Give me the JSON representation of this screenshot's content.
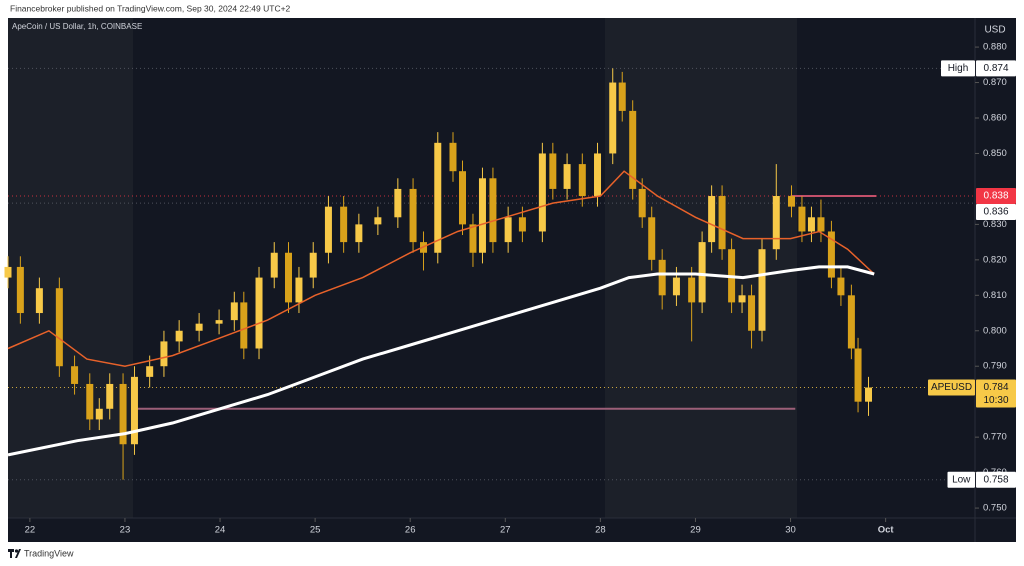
{
  "chart_data": {
    "type": "candlestick",
    "header": "Financebroker published on TradingView.com, Sep 30, 2024 22:49 UTC+2",
    "title": "ApeCoin / US Dollar, 1h, COINBASE",
    "currency": "USD",
    "footer": "TradingView",
    "up_color": "#f7c948",
    "down_color": "#d9a21b",
    "x": [
      21.77,
      21.9,
      22.1,
      22.31,
      22.47,
      22.63,
      22.73,
      22.84,
      22.98,
      23.1,
      23.26,
      23.41,
      23.57,
      23.78,
      23.99,
      24.15,
      24.25,
      24.41,
      24.57,
      24.72,
      24.83,
      24.98,
      25.14,
      25.3,
      25.46,
      25.66,
      25.87,
      26.03,
      26.14,
      26.29,
      26.45,
      26.55,
      26.66,
      26.76,
      26.87,
      27.03,
      27.18,
      27.39,
      27.5,
      27.65,
      27.81,
      27.97,
      28.13,
      28.23,
      28.34,
      28.44,
      28.54,
      28.65,
      28.8,
      28.96,
      29.07,
      29.17,
      29.28,
      29.38,
      29.49,
      29.59,
      29.7,
      29.85,
      30.01,
      30.12,
      30.22,
      30.32,
      30.43,
      30.53,
      30.64,
      30.71,
      30.82
    ],
    "open": [
      0.815,
      0.818,
      0.805,
      0.812,
      0.79,
      0.785,
      0.775,
      0.778,
      0.785,
      0.768,
      0.787,
      0.79,
      0.797,
      0.8,
      0.802,
      0.803,
      0.808,
      0.795,
      0.815,
      0.822,
      0.808,
      0.815,
      0.822,
      0.835,
      0.825,
      0.83,
      0.832,
      0.84,
      0.825,
      0.822,
      0.853,
      0.845,
      0.83,
      0.822,
      0.843,
      0.825,
      0.832,
      0.828,
      0.85,
      0.84,
      0.847,
      0.838,
      0.85,
      0.87,
      0.862,
      0.84,
      0.832,
      0.82,
      0.81,
      0.815,
      0.808,
      0.825,
      0.838,
      0.823,
      0.808,
      0.81,
      0.8,
      0.823,
      0.838,
      0.835,
      0.828,
      0.832,
      0.828,
      0.815,
      0.81,
      0.795,
      0.78
    ],
    "high": [
      0.821,
      0.821,
      0.815,
      0.815,
      0.793,
      0.788,
      0.781,
      0.788,
      0.788,
      0.79,
      0.793,
      0.8,
      0.803,
      0.805,
      0.806,
      0.811,
      0.811,
      0.818,
      0.825,
      0.825,
      0.818,
      0.825,
      0.838,
      0.838,
      0.833,
      0.835,
      0.843,
      0.843,
      0.828,
      0.856,
      0.856,
      0.848,
      0.833,
      0.846,
      0.846,
      0.835,
      0.835,
      0.853,
      0.853,
      0.85,
      0.85,
      0.853,
      0.874,
      0.873,
      0.865,
      0.843,
      0.835,
      0.823,
      0.818,
      0.818,
      0.828,
      0.841,
      0.841,
      0.826,
      0.813,
      0.813,
      0.826,
      0.847,
      0.841,
      0.838,
      0.835,
      0.837,
      0.831,
      0.818,
      0.813,
      0.798,
      0.787
    ],
    "low": [
      0.812,
      0.802,
      0.802,
      0.787,
      0.782,
      0.772,
      0.772,
      0.775,
      0.758,
      0.765,
      0.784,
      0.787,
      0.794,
      0.797,
      0.799,
      0.8,
      0.792,
      0.792,
      0.812,
      0.805,
      0.805,
      0.812,
      0.819,
      0.822,
      0.822,
      0.827,
      0.829,
      0.822,
      0.817,
      0.819,
      0.842,
      0.827,
      0.818,
      0.819,
      0.822,
      0.822,
      0.825,
      0.825,
      0.837,
      0.837,
      0.835,
      0.835,
      0.847,
      0.859,
      0.837,
      0.829,
      0.817,
      0.806,
      0.807,
      0.797,
      0.805,
      0.822,
      0.82,
      0.805,
      0.805,
      0.795,
      0.797,
      0.82,
      0.832,
      0.825,
      0.825,
      0.825,
      0.812,
      0.807,
      0.792,
      0.777,
      0.776
    ],
    "close": [
      0.818,
      0.805,
      0.812,
      0.79,
      0.785,
      0.775,
      0.778,
      0.785,
      0.768,
      0.787,
      0.79,
      0.797,
      0.8,
      0.802,
      0.803,
      0.808,
      0.795,
      0.815,
      0.822,
      0.808,
      0.815,
      0.822,
      0.835,
      0.825,
      0.83,
      0.832,
      0.84,
      0.825,
      0.822,
      0.853,
      0.845,
      0.83,
      0.822,
      0.843,
      0.825,
      0.832,
      0.828,
      0.85,
      0.84,
      0.847,
      0.838,
      0.85,
      0.87,
      0.862,
      0.84,
      0.832,
      0.82,
      0.81,
      0.815,
      0.808,
      0.825,
      0.838,
      0.823,
      0.808,
      0.81,
      0.8,
      0.823,
      0.838,
      0.835,
      0.828,
      0.832,
      0.828,
      0.815,
      0.81,
      0.795,
      0.78,
      0.784
    ],
    "moving_averages": [
      {
        "color": "#e8622a",
        "x": [
          21.77,
          22.2,
          22.6,
          23.0,
          23.5,
          24.0,
          24.5,
          25.0,
          25.5,
          26.0,
          26.5,
          27.0,
          27.5,
          28.0,
          28.25,
          28.6,
          29.0,
          29.5,
          30.0,
          30.3,
          30.6,
          30.88
        ],
        "values": [
          0.795,
          0.8,
          0.792,
          0.79,
          0.793,
          0.798,
          0.803,
          0.81,
          0.815,
          0.822,
          0.828,
          0.832,
          0.836,
          0.838,
          0.845,
          0.838,
          0.832,
          0.826,
          0.826,
          0.828,
          0.823,
          0.816
        ]
      },
      {
        "color": "#ffffff",
        "x": [
          21.77,
          22.5,
          23.0,
          23.5,
          24.0,
          24.5,
          25.0,
          25.5,
          26.0,
          26.5,
          27.0,
          27.5,
          28.0,
          28.3,
          28.6,
          29.0,
          29.5,
          30.0,
          30.3,
          30.6,
          30.88
        ],
        "values": [
          0.765,
          0.769,
          0.771,
          0.774,
          0.778,
          0.782,
          0.787,
          0.792,
          0.796,
          0.8,
          0.804,
          0.808,
          0.812,
          0.815,
          0.816,
          0.816,
          0.815,
          0.817,
          0.818,
          0.818,
          0.816
        ]
      }
    ],
    "levels": [
      {
        "value": 0.778,
        "from": 23.1,
        "to": 30.05,
        "color": "#9c5f78"
      },
      {
        "value": 0.838,
        "from": 30.0,
        "to": 30.9,
        "color": "#c4506a"
      }
    ],
    "price_labels": [
      {
        "name": "High",
        "value": 0.874,
        "color": "#ffffff"
      },
      {
        "value": 0.838,
        "color": "#f23645"
      },
      {
        "value": 0.836,
        "color": "#ffffff"
      },
      {
        "name": "APEUSD",
        "value": 0.784,
        "color": "#f7c948",
        "countdown": "10:30"
      },
      {
        "name": "Low",
        "value": 0.758,
        "color": "#ffffff"
      }
    ],
    "xlim": [
      21.77,
      31.94
    ],
    "ylim": [
      0.7472,
      0.8882
    ],
    "xticks": [
      22,
      23,
      24,
      25,
      26,
      27,
      28,
      29,
      30,
      {
        "value": 31,
        "label": "Oct"
      }
    ],
    "yticks": [
      {
        "value": 0.88,
        "label": "0.880"
      },
      {
        "value": 0.87,
        "label": "0.870"
      },
      {
        "value": 0.86,
        "label": "0.860"
      },
      {
        "value": 0.85,
        "label": "0.850"
      },
      {
        "value": 0.83,
        "label": "0.830"
      },
      {
        "value": 0.82,
        "label": "0.820"
      },
      {
        "value": 0.81,
        "label": "0.810"
      },
      {
        "value": 0.8,
        "label": "0.800"
      },
      {
        "value": 0.79,
        "label": "0.790"
      },
      {
        "value": 0.77,
        "label": "0.770"
      },
      {
        "value": 0.76,
        "label": "0.760"
      },
      {
        "value": 0.75,
        "label": "0.750"
      }
    ],
    "grid": false
  }
}
